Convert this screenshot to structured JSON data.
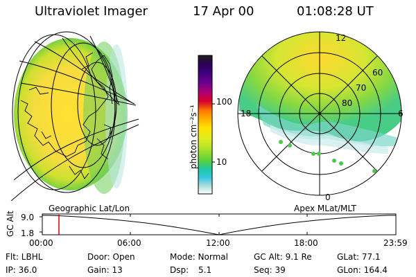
{
  "header": {
    "instrument": "Ultraviolet Imager",
    "date": "17 Apr 00",
    "time": "01:08:28 UT"
  },
  "colorbar": {
    "unit_label": "photon cm⁻²s⁻¹",
    "ticks": [
      "100",
      "10"
    ],
    "stops": [
      "#202020",
      "#2a0050",
      "#3a007a",
      "#700090",
      "#b0006e",
      "#d8002a",
      "#e8201a",
      "#ff7a00",
      "#ffb000",
      "#ffe000",
      "#e0ee20",
      "#a8e22a",
      "#5ad23c",
      "#20c8a0",
      "#30c8e0",
      "#a8dcdc",
      "#e0eef0",
      "#ffffff"
    ]
  },
  "polar_plot": {
    "mlt_labels": [
      "12",
      "18",
      "6",
      "0"
    ],
    "lat_labels": [
      "60",
      "70",
      "80"
    ]
  },
  "timeline": {
    "left_label": "Geographic Lat/Lon",
    "right_label": "Apex MLat/MLT",
    "axis_label": "GC Alt",
    "y_ticks": [
      "9.0",
      "1.8"
    ],
    "x_ticks": [
      "00:00",
      "06:00",
      "12:00",
      "18:00",
      "23:59"
    ],
    "marker_time": "01:08"
  },
  "info": {
    "row1": {
      "flt": "Flt: LBHL",
      "door": "Door: Open",
      "mode": "Mode: Normal",
      "gcalt": "GC Alt: 9.1 Re",
      "glat": "GLat: 77.1"
    },
    "row2": {
      "ip": "IP: 36.0",
      "gain": "Gain: 13",
      "dsp": "Dsp:",
      "dsp_val": "5.1",
      "seq": "Seq: 39",
      "glon": "GLon: 164.4"
    }
  }
}
